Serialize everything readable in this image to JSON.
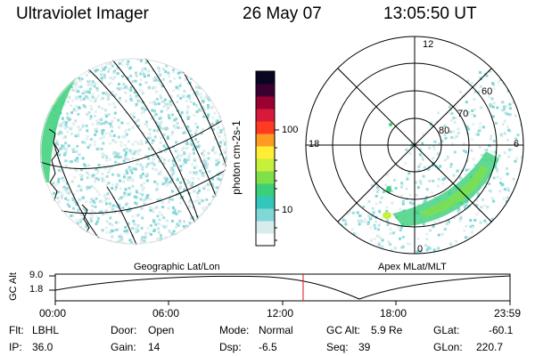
{
  "header": {
    "instrument": "Ultraviolet Imager",
    "date": "26 May 07",
    "time": "13:05:50 UT"
  },
  "colorbar": {
    "label": "photon cm-2s-1",
    "ticks": [
      "100",
      "10"
    ],
    "colors": [
      "#ffffff",
      "#d8ecee",
      "#7fd7d7",
      "#33c7bb",
      "#3ad07a",
      "#7fe04a",
      "#c6f03a",
      "#ffee33",
      "#ff9a22",
      "#ff3a22",
      "#d8193a",
      "#9a0030",
      "#3a0030",
      "#0a0520"
    ]
  },
  "geo_panel": {
    "label": "Geographic Lat/Lon"
  },
  "polar_panel": {
    "label": "Apex MLat/MLT",
    "mlt_labels": {
      "top": "12",
      "left": "18",
      "right": "6",
      "bottom": "0"
    },
    "lat_labels": [
      "60",
      "70",
      "80"
    ]
  },
  "timeline": {
    "ylabel": "GC Alt",
    "yticks": [
      "9.0",
      "1.8"
    ],
    "xticks": [
      "00:00",
      "06:00",
      "12:00",
      "18:00",
      "23:59"
    ],
    "current_time_fraction": 0.545
  },
  "info": [
    {
      "label": "Flt:",
      "value": "LBHL"
    },
    {
      "label": "Door:",
      "value": "Open"
    },
    {
      "label": "Mode:",
      "value": "Normal"
    },
    {
      "label": "GC Alt:",
      "value": "5.9 Re"
    },
    {
      "label": "GLat:",
      "value": "-60.1"
    },
    {
      "label": "IP:",
      "value": "36.0"
    },
    {
      "label": "Gain:",
      "value": "14"
    },
    {
      "label": "Dsp:",
      "value": "-6.5"
    },
    {
      "label": "Seq:",
      "value": "39"
    },
    {
      "label": "GLon:",
      "value": "220.7"
    }
  ]
}
